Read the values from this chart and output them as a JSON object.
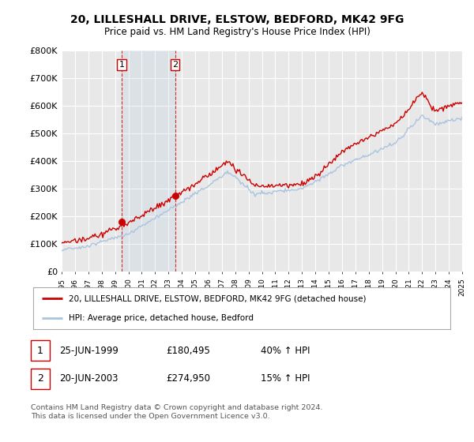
{
  "title": "20, LILLESHALL DRIVE, ELSTOW, BEDFORD, MK42 9FG",
  "subtitle": "Price paid vs. HM Land Registry's House Price Index (HPI)",
  "ylim": [
    0,
    800000
  ],
  "yticks": [
    0,
    100000,
    200000,
    300000,
    400000,
    500000,
    600000,
    700000,
    800000
  ],
  "ytick_labels": [
    "£0",
    "£100K",
    "£200K",
    "£300K",
    "£400K",
    "£500K",
    "£600K",
    "£700K",
    "£800K"
  ],
  "hpi_color": "#aac4e0",
  "price_color": "#cc0000",
  "purchase1_date": 1999.5,
  "purchase1_price": 180495,
  "purchase2_date": 2003.5,
  "purchase2_price": 274950,
  "legend_entry1": "20, LILLESHALL DRIVE, ELSTOW, BEDFORD, MK42 9FG (detached house)",
  "legend_entry2": "HPI: Average price, detached house, Bedford",
  "table_row1_num": "1",
  "table_row1_date": "25-JUN-1999",
  "table_row1_price": "£180,495",
  "table_row1_hpi": "40% ↑ HPI",
  "table_row2_num": "2",
  "table_row2_date": "20-JUN-2003",
  "table_row2_price": "£274,950",
  "table_row2_hpi": "15% ↑ HPI",
  "footnote": "Contains HM Land Registry data © Crown copyright and database right 2024.\nThis data is licensed under the Open Government Licence v3.0.",
  "background_color": "#ffffff",
  "plot_bg_color": "#e8e8e8"
}
